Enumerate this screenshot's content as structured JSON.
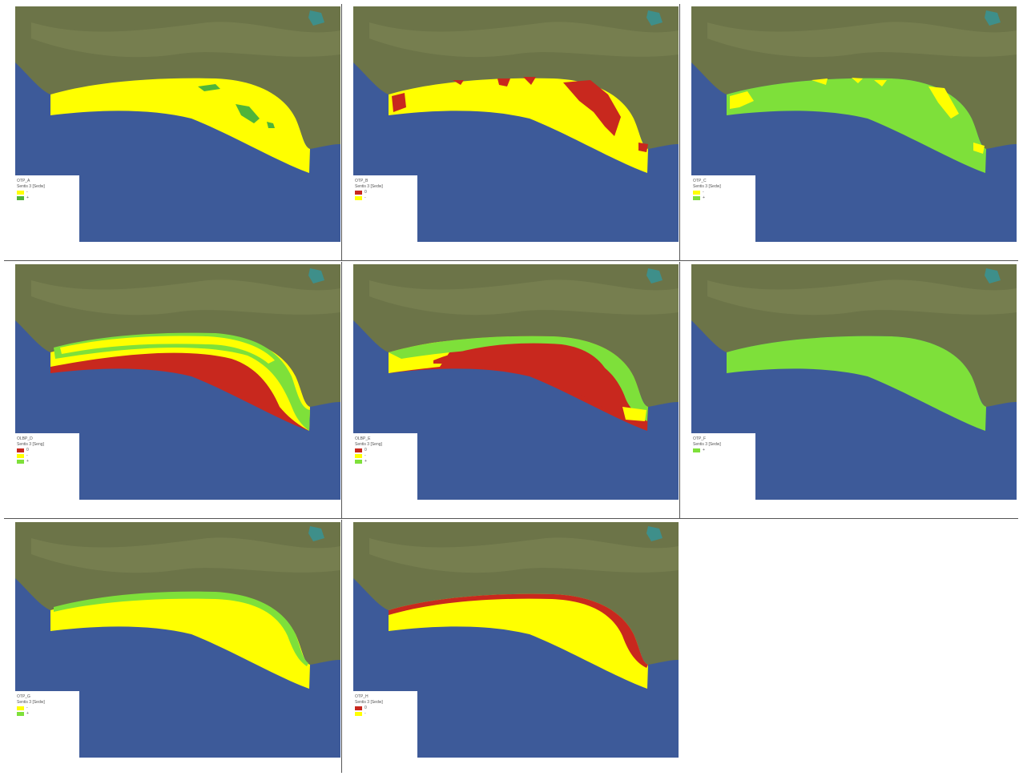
{
  "colors": {
    "sea": "#3d5a99",
    "land": "#6c7448",
    "yellow": "#ffff00",
    "green": "#7ee03a",
    "darkgreen": "#4fb43a",
    "red": "#c8281e"
  },
  "panels": [
    {
      "title": "OTP_A",
      "subtitle": "Sentis 3 [Sedw]",
      "legend": [
        {
          "color": "yellow",
          "label": "-"
        },
        {
          "color": "darkgreen",
          "label": "+"
        }
      ]
    },
    {
      "title": "OTP_B",
      "subtitle": "Sentis 3 [Sedw]",
      "legend": [
        {
          "color": "red",
          "label": "0"
        },
        {
          "color": "yellow",
          "label": "-"
        }
      ]
    },
    {
      "title": "OTP_C",
      "subtitle": "Sentis 3 [Sedw]",
      "legend": [
        {
          "color": "yellow",
          "label": "-"
        },
        {
          "color": "green",
          "label": "+"
        }
      ]
    },
    {
      "title": "OLBP_D",
      "subtitle": "Sentis 3 [Seng]",
      "legend": [
        {
          "color": "red",
          "label": "0"
        },
        {
          "color": "yellow",
          "label": "-"
        },
        {
          "color": "green",
          "label": "+"
        }
      ]
    },
    {
      "title": "OLBP_E",
      "subtitle": "Sentis 3 [Seng]",
      "legend": [
        {
          "color": "red",
          "label": "0"
        },
        {
          "color": "yellow",
          "label": "-"
        },
        {
          "color": "green",
          "label": "+"
        }
      ]
    },
    {
      "title": "OTP_F",
      "subtitle": "Sentis 3 [Sedw]",
      "legend": [
        {
          "color": "green",
          "label": "+"
        }
      ]
    },
    {
      "title": "OTP_G",
      "subtitle": "Sentis 3 [Sedw]",
      "legend": [
        {
          "color": "yellow",
          "label": "-"
        },
        {
          "color": "green",
          "label": "+"
        }
      ]
    },
    {
      "title": "OTP_H",
      "subtitle": "Sentis 3 [Sedw]",
      "legend": [
        {
          "color": "red",
          "label": "0"
        },
        {
          "color": "yellow",
          "label": "-"
        }
      ]
    }
  ]
}
